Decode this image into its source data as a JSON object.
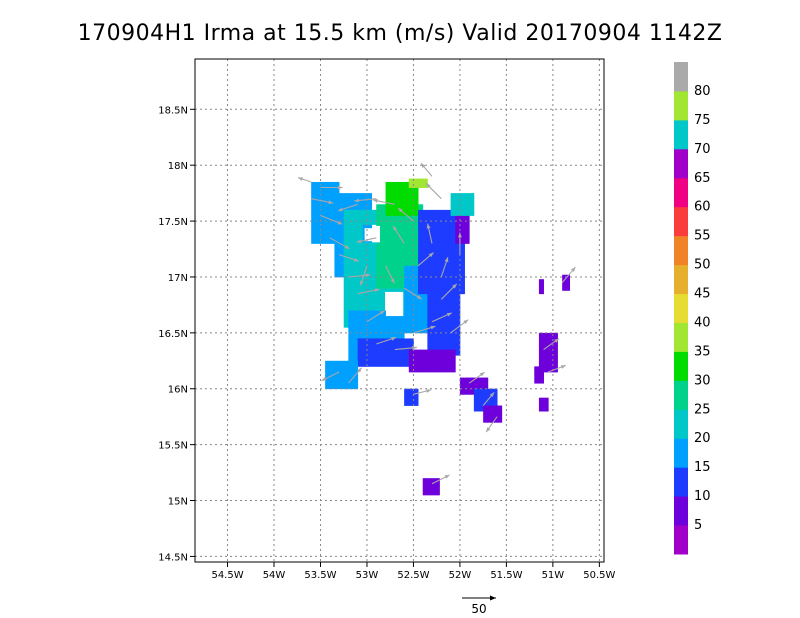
{
  "chart_data": {
    "type": "heatmap",
    "title": "170904H1 Irma at 15.5 km (m/s) Valid 20170904 1142Z",
    "x_ticks": [
      "54.5W",
      "54W",
      "53.5W",
      "53W",
      "52.5W",
      "52W",
      "51.5W",
      "51W",
      "50.5W"
    ],
    "x_values": [
      -54.5,
      -54,
      -53.5,
      -53,
      -52.5,
      -52,
      -51.5,
      -51,
      -50.5
    ],
    "y_ticks": [
      "14.5N",
      "15N",
      "15.5N",
      "16N",
      "16.5N",
      "17N",
      "17.5N",
      "18N",
      "18.5N"
    ],
    "y_values": [
      14.5,
      15,
      15.5,
      16,
      16.5,
      17,
      17.5,
      18,
      18.5
    ],
    "xlim": [
      -54.85,
      -50.45
    ],
    "ylim": [
      14.45,
      18.95
    ],
    "grid": true,
    "colorbar": {
      "labels": [
        "5",
        "10",
        "15",
        "20",
        "25",
        "30",
        "35",
        "40",
        "45",
        "50",
        "55",
        "60",
        "65",
        "70",
        "75",
        "80"
      ],
      "colors": [
        "#a000c8",
        "#6e00dc",
        "#1e3cff",
        "#00a0ff",
        "#00c8c8",
        "#00d28c",
        "#00dc00",
        "#a0e632",
        "#e6dc32",
        "#e6af2d",
        "#f08228",
        "#fa3c3c",
        "#f00082",
        "#a000c8",
        "#00c8c8",
        "#a0e632",
        "#aaaaaa"
      ]
    },
    "grid_dx": 0.04,
    "grid_dy": 0.04,
    "boxes": [
      {
        "lon": [
          -53.6,
          -53.3
        ],
        "lat": [
          17.3,
          17.85
        ],
        "cat": 3
      },
      {
        "lon": [
          -53.35,
          -52.95
        ],
        "lat": [
          17.0,
          17.75
        ],
        "cat": 3
      },
      {
        "lon": [
          -53.25,
          -52.5
        ],
        "lat": [
          16.55,
          17.6
        ],
        "cat": 4
      },
      {
        "lon": [
          -52.9,
          -52.4
        ],
        "lat": [
          16.9,
          17.65
        ],
        "cat": 5
      },
      {
        "lon": [
          -52.8,
          -52.45
        ],
        "lat": [
          17.55,
          17.85
        ],
        "cat": 6
      },
      {
        "lon": [
          -52.55,
          -52.35
        ],
        "lat": [
          17.8,
          17.88
        ],
        "cat": 7
      },
      {
        "lon": [
          -52.6,
          -52.1
        ],
        "lat": [
          16.5,
          17.1
        ],
        "cat": 3
      },
      {
        "lon": [
          -53.2,
          -52.6
        ],
        "lat": [
          16.25,
          16.7
        ],
        "cat": 3
      },
      {
        "lon": [
          -52.45,
          -51.95
        ],
        "lat": [
          16.85,
          17.6
        ],
        "cat": 2
      },
      {
        "lon": [
          -52.35,
          -52.0
        ],
        "lat": [
          16.3,
          16.85
        ],
        "cat": 2
      },
      {
        "lon": [
          -53.1,
          -52.5
        ],
        "lat": [
          16.2,
          16.45
        ],
        "cat": 2
      },
      {
        "lon": [
          -52.55,
          -52.05
        ],
        "lat": [
          16.15,
          16.35
        ],
        "cat": 1
      },
      {
        "lon": [
          -52.05,
          -51.9
        ],
        "lat": [
          17.3,
          17.55
        ],
        "cat": 1
      },
      {
        "lon": [
          -52.1,
          -51.85
        ],
        "lat": [
          17.55,
          17.75
        ],
        "cat": 4
      },
      {
        "lon": [
          -53.45,
          -53.1
        ],
        "lat": [
          16.0,
          16.25
        ],
        "cat": 3
      },
      {
        "lon": [
          -52.6,
          -52.45
        ],
        "lat": [
          15.85,
          16.0
        ],
        "cat": 2
      },
      {
        "lon": [
          -52.0,
          -51.7
        ],
        "lat": [
          15.95,
          16.1
        ],
        "cat": 1
      },
      {
        "lon": [
          -51.85,
          -51.6
        ],
        "lat": [
          15.8,
          16.0
        ],
        "cat": 2
      },
      {
        "lon": [
          -51.75,
          -51.55
        ],
        "lat": [
          15.7,
          15.85
        ],
        "cat": 1
      },
      {
        "lon": [
          -51.15,
          -50.95
        ],
        "lat": [
          16.15,
          16.5
        ],
        "cat": 1
      },
      {
        "lon": [
          -51.2,
          -51.1
        ],
        "lat": [
          16.05,
          16.2
        ],
        "cat": 1
      },
      {
        "lon": [
          -51.15,
          -51.05
        ],
        "lat": [
          15.8,
          15.92
        ],
        "cat": 1
      },
      {
        "lon": [
          -51.15,
          -51.1
        ],
        "lat": [
          16.85,
          16.98
        ],
        "cat": 1
      },
      {
        "lon": [
          -50.9,
          -50.82
        ],
        "lat": [
          16.88,
          17.02
        ],
        "cat": 1
      },
      {
        "lon": [
          -52.4,
          -52.22
        ],
        "lat": [
          15.05,
          15.2
        ],
        "cat": 1
      }
    ],
    "holes": [
      {
        "lon": [
          -53.05,
          -52.85
        ],
        "lat": [
          17.3,
          17.45
        ]
      },
      {
        "lon": [
          -52.8,
          -52.6
        ],
        "lat": [
          16.65,
          16.85
        ]
      }
    ],
    "vectors": [
      {
        "lon": -53.6,
        "lat": 17.7,
        "u": 1.0,
        "v": -0.2
      },
      {
        "lon": -53.5,
        "lat": 17.55,
        "u": 1.0,
        "v": -0.4
      },
      {
        "lon": -53.4,
        "lat": 17.35,
        "u": 0.9,
        "v": -0.5
      },
      {
        "lon": -53.3,
        "lat": 17.2,
        "u": 0.9,
        "v": -0.3
      },
      {
        "lon": -53.2,
        "lat": 17.0,
        "u": 1.0,
        "v": 0.1
      },
      {
        "lon": -53.1,
        "lat": 16.85,
        "u": 1.0,
        "v": 0.2
      },
      {
        "lon": -53.0,
        "lat": 16.6,
        "u": 0.8,
        "v": 0.5
      },
      {
        "lon": -52.9,
        "lat": 16.4,
        "u": 0.9,
        "v": 0.3
      },
      {
        "lon": -52.7,
        "lat": 16.35,
        "u": 1.0,
        "v": 0.1
      },
      {
        "lon": -52.5,
        "lat": 16.5,
        "u": 1.0,
        "v": 0.3
      },
      {
        "lon": -52.3,
        "lat": 16.6,
        "u": 0.9,
        "v": 0.4
      },
      {
        "lon": -52.2,
        "lat": 16.8,
        "u": 0.7,
        "v": 0.7
      },
      {
        "lon": -52.2,
        "lat": 17.0,
        "u": 0.3,
        "v": 0.9
      },
      {
        "lon": -52.3,
        "lat": 17.3,
        "u": -0.2,
        "v": 0.9
      },
      {
        "lon": -52.5,
        "lat": 17.5,
        "u": -0.7,
        "v": 0.6
      },
      {
        "lon": -52.7,
        "lat": 17.65,
        "u": -1.0,
        "v": 0.2
      },
      {
        "lon": -52.9,
        "lat": 17.7,
        "u": -1.0,
        "v": -0.1
      },
      {
        "lon": -53.1,
        "lat": 17.65,
        "u": -0.9,
        "v": -0.3
      },
      {
        "lon": -52.8,
        "lat": 17.1,
        "u": 0.4,
        "v": -0.8
      },
      {
        "lon": -52.6,
        "lat": 16.9,
        "u": 0.8,
        "v": -0.5
      },
      {
        "lon": -52.45,
        "lat": 17.1,
        "u": 0.7,
        "v": 0.6
      },
      {
        "lon": -52.6,
        "lat": 17.3,
        "u": -0.5,
        "v": 0.8
      },
      {
        "lon": -52.9,
        "lat": 17.35,
        "u": -0.9,
        "v": -0.2
      },
      {
        "lon": -53.0,
        "lat": 17.1,
        "u": -0.3,
        "v": -0.9
      },
      {
        "lon": -53.6,
        "lat": 17.85,
        "u": -0.6,
        "v": 0.2
      },
      {
        "lon": -52.2,
        "lat": 17.7,
        "u": -0.7,
        "v": 0.7
      },
      {
        "lon": -52.0,
        "lat": 17.2,
        "u": 0.0,
        "v": 1.0
      },
      {
        "lon": -52.1,
        "lat": 16.5,
        "u": 0.8,
        "v": 0.6
      },
      {
        "lon": -53.3,
        "lat": 16.15,
        "u": -0.8,
        "v": -0.4
      },
      {
        "lon": -53.2,
        "lat": 16.05,
        "u": 0.6,
        "v": 0.7
      },
      {
        "lon": -52.5,
        "lat": 15.95,
        "u": 0.8,
        "v": 0.2
      },
      {
        "lon": -51.9,
        "lat": 16.05,
        "u": 0.7,
        "v": 0.5
      },
      {
        "lon": -51.75,
        "lat": 15.85,
        "u": 0.5,
        "v": 0.6
      },
      {
        "lon": -51.6,
        "lat": 15.75,
        "u": -0.5,
        "v": -0.7
      },
      {
        "lon": -51.1,
        "lat": 16.35,
        "u": 0.7,
        "v": 0.5
      },
      {
        "lon": -51.05,
        "lat": 16.15,
        "u": 0.8,
        "v": 0.3
      },
      {
        "lon": -50.9,
        "lat": 16.95,
        "u": 0.6,
        "v": 0.7
      },
      {
        "lon": -52.3,
        "lat": 15.15,
        "u": 0.8,
        "v": 0.4
      },
      {
        "lon": -52.3,
        "lat": 17.9,
        "u": -0.5,
        "v": 0.6
      },
      {
        "lon": -53.5,
        "lat": 17.8,
        "u": 1.0,
        "v": 0.0
      }
    ],
    "reference_vector": {
      "label": "50"
    }
  }
}
